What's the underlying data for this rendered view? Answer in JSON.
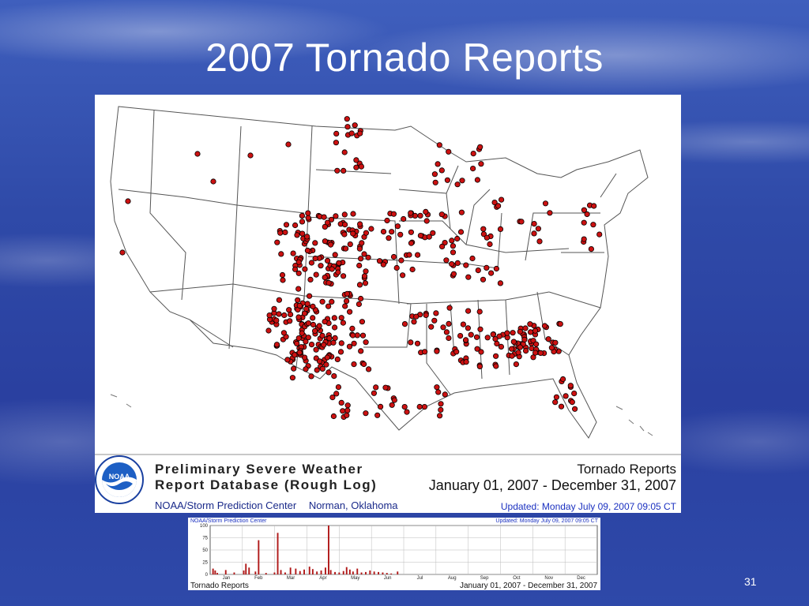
{
  "slide": {
    "title": "2007 Tornado Reports",
    "page_number": "31"
  },
  "map_legend": {
    "logo_text": "NOAA",
    "database_title_line1": "Preliminary Severe Weather",
    "database_title_line2": "Report Database (Rough Log)",
    "center": "NOAA/Storm Prediction Center",
    "location": "Norman, Oklahoma",
    "report_type": "Tornado Reports",
    "date_range": "January 01, 2007 - December 31, 2007",
    "updated": "Updated:  Monday July 09, 2007 09:05 CT"
  },
  "histogram": {
    "header_left": "NOAA/Storm Prediction Center",
    "header_right": "Updated:  Monday July 09, 2007 09:05 CT",
    "footer_left": "Tornado Reports",
    "footer_right": "January 01, 2007 - December 31, 2007",
    "y_ticks": [
      "100",
      "75",
      "50",
      "25",
      "0"
    ],
    "months": [
      "Jan",
      "Feb",
      "Mar",
      "Apr",
      "May",
      "Jun",
      "Jul",
      "Aug",
      "Sep",
      "Oct",
      "Nov",
      "Dec"
    ]
  },
  "colors": {
    "report_dot": "#cc1111",
    "bar": "#b01818",
    "slide_bg": "#2f4aa8"
  }
}
